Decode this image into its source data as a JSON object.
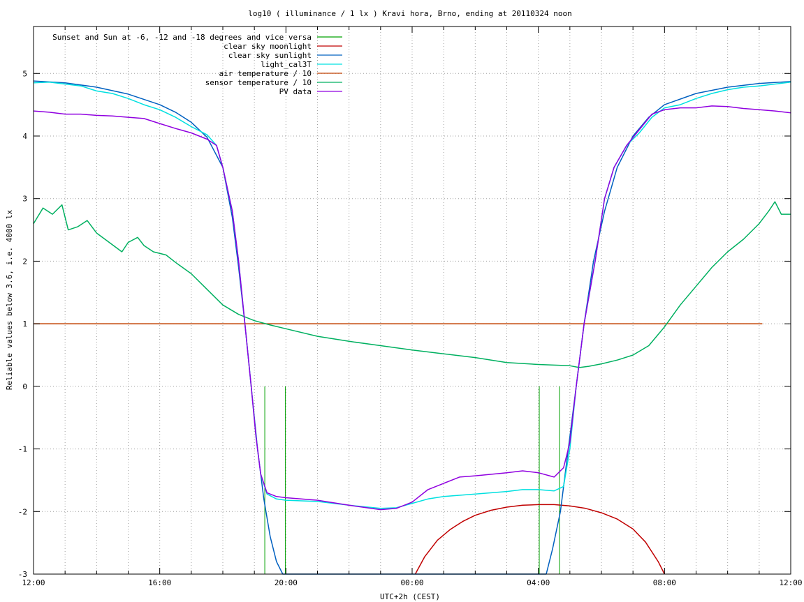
{
  "chart_data": {
    "type": "line",
    "title": "log10 ( illuminance / 1 lx ) Kravi hora, Brno, ending at 20110324 noon",
    "xlabel": "UTC+2h (CEST)",
    "ylabel": "Reliable values below 3.6, i.e. 4000 lx",
    "x_unit": "hours (local time, CEST); ticks every 1 h, labels every 4 h",
    "xlim": [
      12,
      36
    ],
    "ylim": [
      -3,
      5.75
    ],
    "x_tick_labels": [
      {
        "x": 12,
        "label": "12:00"
      },
      {
        "x": 16,
        "label": "16:00"
      },
      {
        "x": 20,
        "label": "20:00"
      },
      {
        "x": 24,
        "label": "00:00"
      },
      {
        "x": 28,
        "label": "04:00"
      },
      {
        "x": 32,
        "label": "08:00"
      },
      {
        "x": 36,
        "label": "12:00"
      }
    ],
    "y_ticks": [
      -3,
      -2,
      -1,
      0,
      1,
      2,
      3,
      4,
      5
    ],
    "grid": true,
    "legend_position": "top-left",
    "series": [
      {
        "name": "Sunset and Sun at -6, -12 and -18 degrees and vice versa",
        "color": "#00a000",
        "kind": "impulses",
        "points": [
          [
            18.15,
            0
          ],
          [
            18.72,
            0
          ],
          [
            19.33,
            -3
          ],
          [
            19.98,
            -3
          ],
          [
            28.03,
            -3
          ],
          [
            28.67,
            -3
          ],
          [
            29.33,
            0
          ],
          [
            29.88,
            0
          ]
        ]
      },
      {
        "name": "clear sky moonlight",
        "color": "#c00000",
        "kind": "line",
        "points": [
          [
            24.1,
            -3
          ],
          [
            24.4,
            -2.72
          ],
          [
            24.8,
            -2.46
          ],
          [
            25.2,
            -2.29
          ],
          [
            25.6,
            -2.16
          ],
          [
            26.0,
            -2.06
          ],
          [
            26.5,
            -1.98
          ],
          [
            27.0,
            -1.93
          ],
          [
            27.5,
            -1.9
          ],
          [
            28.0,
            -1.89
          ],
          [
            28.5,
            -1.89
          ],
          [
            29.0,
            -1.91
          ],
          [
            29.5,
            -1.95
          ],
          [
            30.0,
            -2.02
          ],
          [
            30.5,
            -2.12
          ],
          [
            31.0,
            -2.28
          ],
          [
            31.4,
            -2.49
          ],
          [
            31.8,
            -2.8
          ],
          [
            32.0,
            -3
          ]
        ]
      },
      {
        "name": "clear sky sunlight",
        "color": "#0060c0",
        "kind": "line",
        "points": [
          [
            12,
            4.88
          ],
          [
            13,
            4.85
          ],
          [
            14,
            4.78
          ],
          [
            15,
            4.67
          ],
          [
            16,
            4.5
          ],
          [
            16.5,
            4.38
          ],
          [
            17,
            4.22
          ],
          [
            17.5,
            3.98
          ],
          [
            18.0,
            3.5
          ],
          [
            18.3,
            2.7
          ],
          [
            18.5,
            1.9
          ],
          [
            18.7,
            1.0
          ],
          [
            18.9,
            0.0
          ],
          [
            19.1,
            -1.0
          ],
          [
            19.3,
            -1.8
          ],
          [
            19.5,
            -2.4
          ],
          [
            19.7,
            -2.8
          ],
          [
            19.9,
            -3
          ],
          [
            28.25,
            -3
          ],
          [
            28.45,
            -2.6
          ],
          [
            28.7,
            -2.0
          ],
          [
            28.95,
            -1.0
          ],
          [
            29.2,
            0.0
          ],
          [
            29.45,
            1.0
          ],
          [
            29.75,
            2.0
          ],
          [
            30.1,
            2.8
          ],
          [
            30.5,
            3.5
          ],
          [
            31.0,
            4.0
          ],
          [
            31.5,
            4.3
          ],
          [
            32.0,
            4.5
          ],
          [
            33.0,
            4.68
          ],
          [
            34.0,
            4.78
          ],
          [
            35.0,
            4.84
          ],
          [
            36.0,
            4.87
          ]
        ]
      },
      {
        "name": "light_cal3T",
        "color": "#00e0e0",
        "kind": "line",
        "points": [
          [
            12,
            4.85
          ],
          [
            12.5,
            4.86
          ],
          [
            13,
            4.83
          ],
          [
            13.5,
            4.8
          ],
          [
            14,
            4.72
          ],
          [
            14.5,
            4.68
          ],
          [
            15,
            4.6
          ],
          [
            15.5,
            4.5
          ],
          [
            16,
            4.42
          ],
          [
            16.5,
            4.3
          ],
          [
            17,
            4.15
          ],
          [
            17.5,
            4.02
          ],
          [
            17.8,
            3.85
          ],
          [
            18.0,
            3.5
          ],
          [
            18.3,
            2.8
          ],
          [
            18.5,
            2.0
          ],
          [
            18.7,
            1.0
          ],
          [
            18.9,
            0.0
          ],
          [
            19.05,
            -0.8
          ],
          [
            19.2,
            -1.4
          ],
          [
            19.4,
            -1.72
          ],
          [
            19.7,
            -1.8
          ],
          [
            20,
            -1.82
          ],
          [
            21,
            -1.84
          ],
          [
            22,
            -1.9
          ],
          [
            23,
            -1.95
          ],
          [
            23.5,
            -1.94
          ],
          [
            24,
            -1.87
          ],
          [
            24.5,
            -1.8
          ],
          [
            25,
            -1.76
          ],
          [
            25.5,
            -1.74
          ],
          [
            26,
            -1.72
          ],
          [
            27,
            -1.68
          ],
          [
            27.5,
            -1.65
          ],
          [
            28,
            -1.65
          ],
          [
            28.5,
            -1.67
          ],
          [
            28.8,
            -1.6
          ],
          [
            29.0,
            -1.0
          ],
          [
            29.2,
            0.0
          ],
          [
            29.45,
            1.0
          ],
          [
            29.8,
            2.0
          ],
          [
            30.1,
            3.0
          ],
          [
            30.4,
            3.5
          ],
          [
            30.8,
            3.85
          ],
          [
            31.2,
            4.05
          ],
          [
            31.6,
            4.3
          ],
          [
            32,
            4.45
          ],
          [
            32.5,
            4.5
          ],
          [
            33,
            4.6
          ],
          [
            33.5,
            4.68
          ],
          [
            34,
            4.74
          ],
          [
            34.5,
            4.78
          ],
          [
            35,
            4.8
          ],
          [
            35.5,
            4.83
          ],
          [
            36,
            4.86
          ]
        ]
      },
      {
        "name": "air temperature / 10",
        "color": "#c04000",
        "kind": "line",
        "points": [
          [
            12,
            1.0
          ],
          [
            35.1,
            1.0
          ]
        ]
      },
      {
        "name": "sensor temperature / 10",
        "color": "#00b060",
        "kind": "line",
        "points": [
          [
            12,
            2.6
          ],
          [
            12.3,
            2.85
          ],
          [
            12.6,
            2.75
          ],
          [
            12.9,
            2.9
          ],
          [
            13.1,
            2.5
          ],
          [
            13.4,
            2.55
          ],
          [
            13.7,
            2.65
          ],
          [
            14.0,
            2.45
          ],
          [
            14.4,
            2.3
          ],
          [
            14.8,
            2.15
          ],
          [
            15.0,
            2.3
          ],
          [
            15.3,
            2.38
          ],
          [
            15.5,
            2.25
          ],
          [
            15.8,
            2.15
          ],
          [
            16.2,
            2.1
          ],
          [
            16.5,
            1.98
          ],
          [
            17,
            1.8
          ],
          [
            17.5,
            1.55
          ],
          [
            18,
            1.3
          ],
          [
            18.5,
            1.15
          ],
          [
            19,
            1.05
          ],
          [
            19.5,
            0.98
          ],
          [
            20,
            0.92
          ],
          [
            21,
            0.8
          ],
          [
            22,
            0.72
          ],
          [
            23,
            0.65
          ],
          [
            24,
            0.58
          ],
          [
            25,
            0.52
          ],
          [
            26,
            0.46
          ],
          [
            27,
            0.38
          ],
          [
            28,
            0.35
          ],
          [
            28.5,
            0.34
          ],
          [
            29,
            0.33
          ],
          [
            29.3,
            0.3
          ],
          [
            29.6,
            0.32
          ],
          [
            30,
            0.36
          ],
          [
            30.5,
            0.42
          ],
          [
            31,
            0.5
          ],
          [
            31.5,
            0.65
          ],
          [
            32,
            0.95
          ],
          [
            32.5,
            1.3
          ],
          [
            33,
            1.6
          ],
          [
            33.5,
            1.9
          ],
          [
            34,
            2.15
          ],
          [
            34.5,
            2.35
          ],
          [
            35,
            2.6
          ],
          [
            35.3,
            2.8
          ],
          [
            35.5,
            2.95
          ],
          [
            35.7,
            2.75
          ],
          [
            36,
            2.75
          ]
        ]
      },
      {
        "name": "PV data",
        "color": "#9000e0",
        "kind": "line",
        "points": [
          [
            12,
            4.4
          ],
          [
            12.5,
            4.38
          ],
          [
            13,
            4.35
          ],
          [
            13.5,
            4.35
          ],
          [
            14,
            4.33
          ],
          [
            14.5,
            4.32
          ],
          [
            15,
            4.3
          ],
          [
            15.5,
            4.28
          ],
          [
            16,
            4.2
          ],
          [
            16.5,
            4.12
          ],
          [
            17,
            4.05
          ],
          [
            17.5,
            3.95
          ],
          [
            17.8,
            3.85
          ],
          [
            18.0,
            3.5
          ],
          [
            18.3,
            2.8
          ],
          [
            18.5,
            2.0
          ],
          [
            18.7,
            1.0
          ],
          [
            18.9,
            0.0
          ],
          [
            19.05,
            -0.8
          ],
          [
            19.2,
            -1.4
          ],
          [
            19.4,
            -1.7
          ],
          [
            19.7,
            -1.76
          ],
          [
            20,
            -1.78
          ],
          [
            21,
            -1.82
          ],
          [
            22,
            -1.9
          ],
          [
            23,
            -1.97
          ],
          [
            23.5,
            -1.95
          ],
          [
            24,
            -1.85
          ],
          [
            24.5,
            -1.65
          ],
          [
            25,
            -1.55
          ],
          [
            25.5,
            -1.45
          ],
          [
            26,
            -1.43
          ],
          [
            27,
            -1.38
          ],
          [
            27.5,
            -1.35
          ],
          [
            28,
            -1.38
          ],
          [
            28.5,
            -1.45
          ],
          [
            28.8,
            -1.3
          ],
          [
            29.0,
            -0.9
          ],
          [
            29.2,
            0.0
          ],
          [
            29.45,
            1.0
          ],
          [
            29.8,
            2.0
          ],
          [
            30.1,
            3.0
          ],
          [
            30.4,
            3.5
          ],
          [
            30.8,
            3.85
          ],
          [
            31.2,
            4.1
          ],
          [
            31.6,
            4.35
          ],
          [
            32,
            4.42
          ],
          [
            32.5,
            4.45
          ],
          [
            33,
            4.45
          ],
          [
            33.5,
            4.48
          ],
          [
            34,
            4.47
          ],
          [
            34.5,
            4.44
          ],
          [
            35,
            4.42
          ],
          [
            35.5,
            4.4
          ],
          [
            36,
            4.37
          ]
        ]
      }
    ]
  }
}
